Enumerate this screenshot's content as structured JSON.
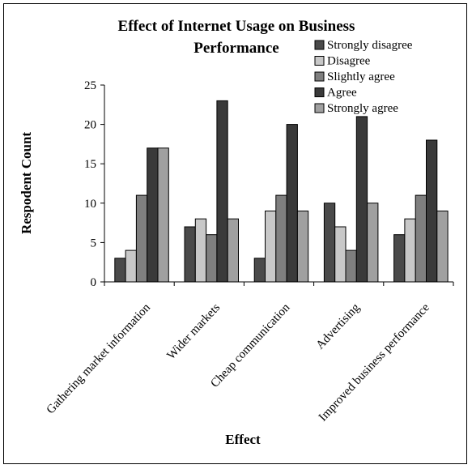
{
  "chart_data": {
    "type": "bar",
    "title_line1": "Effect of Internet Usage on Business",
    "title_line2": "Performance",
    "xlabel": "Effect",
    "ylabel": "Respodent Count",
    "ylim": [
      0,
      25
    ],
    "yticks": [
      "0",
      "5",
      "10",
      "15",
      "20",
      "25"
    ],
    "grid": false,
    "legend_position": "top-right",
    "categories": [
      "Gathering  market information",
      "Wider markets",
      "Cheap communication",
      "Advertising",
      "Improved business performance"
    ],
    "series": [
      {
        "name": "Strongly disagree",
        "color": "#4a4a4a",
        "values": [
          3,
          7,
          3,
          10,
          6
        ]
      },
      {
        "name": "Disagree",
        "color": "#c8c8c8",
        "values": [
          4,
          8,
          9,
          7,
          8
        ]
      },
      {
        "name": "Slightly agree",
        "color": "#7f7f7f",
        "values": [
          11,
          6,
          11,
          4,
          11
        ]
      },
      {
        "name": "Agree",
        "color": "#3a3a3a",
        "values": [
          17,
          23,
          20,
          21,
          18
        ]
      },
      {
        "name": "Strongly agree",
        "color": "#a0a0a0",
        "values": [
          17,
          8,
          9,
          10,
          9
        ]
      }
    ]
  }
}
